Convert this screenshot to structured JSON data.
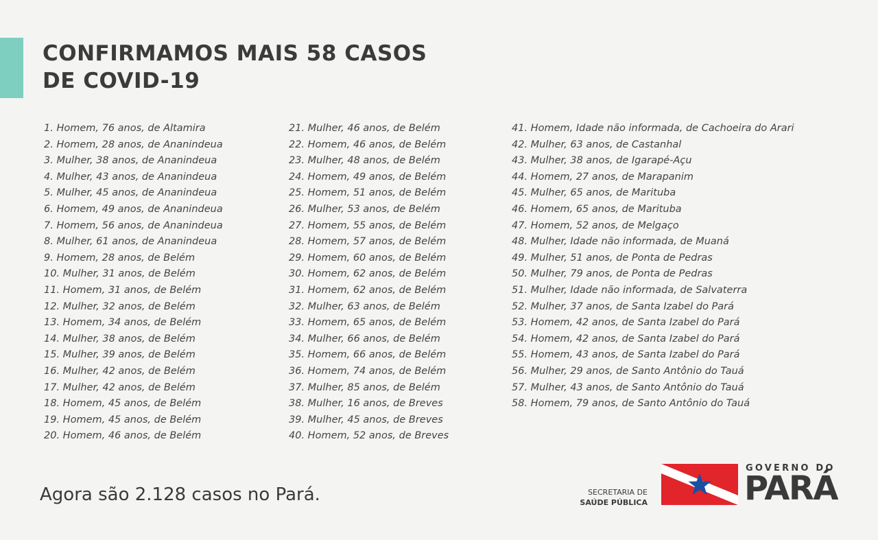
{
  "header": {
    "title_line1": "CONFIRMAMOS MAIS 58 CASOS",
    "title_line2": "DE COVID-19"
  },
  "columns": [
    [
      "1. Homem, 76 anos, de Altamira",
      "2. Homem, 28 anos, de Ananindeua",
      "3. Mulher, 38 anos, de Ananindeua",
      "4. Mulher, 43 anos, de Ananindeua",
      "5. Mulher, 45 anos, de Ananindeua",
      "6. Homem, 49 anos, de Ananindeua",
      "7. Homem, 56 anos, de Ananindeua",
      "8. Mulher, 61 anos, de Ananindeua",
      "9. Homem, 28 anos, de Belém",
      "10. Mulher, 31 anos, de Belém",
      "11. Homem, 31 anos, de Belém",
      "12. Mulher, 32 anos, de Belém",
      "13. Homem, 34 anos, de Belém",
      "14. Mulher, 38 anos, de Belém",
      "15. Mulher, 39 anos, de Belém",
      "16. Mulher, 42 anos, de Belém",
      "17. Mulher, 42 anos, de Belém",
      "18. Homem, 45 anos, de Belém",
      "19. Homem, 45 anos, de Belém",
      "20. Homem, 46 anos, de Belém"
    ],
    [
      "21. Mulher, 46 anos, de Belém",
      "22. Homem, 46 anos, de Belém",
      "23. Mulher, 48 anos, de Belém",
      "24. Homem, 49 anos, de Belém",
      "25. Homem, 51 anos, de Belém",
      "26. Mulher, 53 anos, de Belém",
      "27. Homem, 55 anos, de Belém",
      "28. Homem, 57 anos, de Belém",
      "29. Homem, 60 anos, de Belém",
      "30. Homem, 62 anos, de Belém",
      "31. Homem, 62 anos, de Belém",
      "32. Mulher, 63 anos, de Belém",
      "33. Homem, 65 anos, de Belém",
      "34. Mulher, 66 anos, de Belém",
      "35. Homem, 66 anos, de Belém",
      "36. Homem, 74 anos, de Belém",
      "37. Mulher, 85 anos, de Belém",
      "38. Mulher, 16 anos, de Breves",
      "39. Mulher, 45 anos, de Breves",
      "40. Homem, 52 anos, de Breves"
    ],
    [
      "41. Homem, Idade não informada, de Cachoeira do Arari",
      "42. Mulher, 63 anos, de Castanhal",
      "43. Mulher, 38 anos, de Igarapé-Açu",
      "44. Homem, 27 anos, de Marapanim",
      "45. Mulher, 65 anos, de Marituba",
      "46. Homem, 65 anos, de Marituba",
      "47. Homem, 52 anos, de Melgaço",
      "48. Mulher, Idade não informada, de Muaná",
      "49. Mulher, 51 anos, de Ponta de Pedras",
      "50. Mulher, 79 anos, de Ponta de Pedras",
      "51. Mulher, Idade não informada, de Salvaterra",
      "52. Mulher, 37 anos, de Santa Izabel do Pará",
      "53. Homem, 42 anos, de Santa Izabel do Pará",
      "54. Homem, 42 anos, de Santa Izabel do Pará",
      "55. Homem, 43 anos, de Santa Izabel do Pará",
      "56. Mulher, 29 anos, de Santo Antônio do Tauá",
      "57. Mulher, 43 anos, de Santo Antônio do Tauá",
      "58. Homem, 79 anos, de Santo Antônio do Tauá"
    ]
  ],
  "footer": {
    "total_text": "Agora são 2.128 casos no Pará."
  },
  "branding": {
    "secretaria_line1": "SECRETARIA DE",
    "secretaria_line2": "SAÚDE PÚBLICA",
    "gov_small": "GOVERNO DO",
    "gov_big": "PARÁ",
    "flag_icon": "para-flag-icon",
    "colors": {
      "accent": "#7fcfc0",
      "flag_red": "#e2242b",
      "flag_blue": "#1a4fa2",
      "text": "#3a3a3a"
    }
  }
}
